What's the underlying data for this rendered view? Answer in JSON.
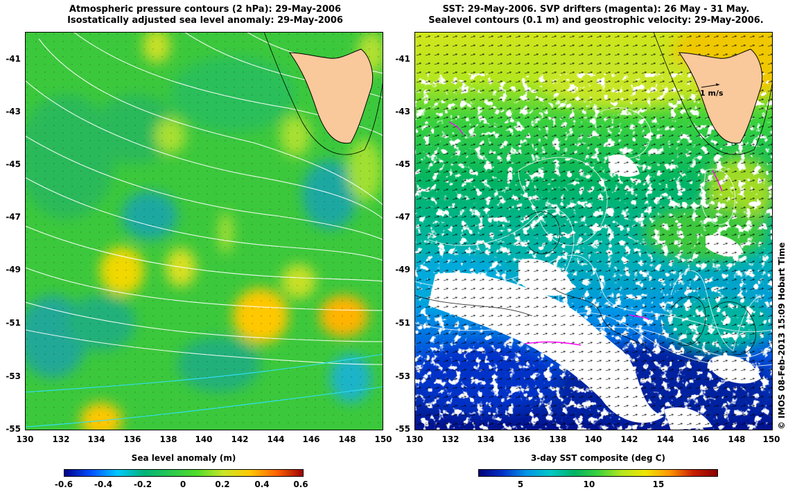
{
  "left_panel": {
    "title_line1": "Atmospheric pressure contours (2 hPa): 29-May-2006",
    "title_line2": "Isostatically adjusted sea level anomaly: 29-May-2006",
    "colorbar_label": "Sea level anomaly (m)",
    "colorbar_ticks": [
      "-0.6",
      "-0.4",
      "-0.2",
      "0",
      "0.2",
      "0.4",
      "0.6"
    ]
  },
  "right_panel": {
    "title_line1": "SST: 29-May-2006. SVP drifters (magenta): 26 May - 31 May.",
    "title_line2": "Sealevel contours (0.1 m) and geostrophic velocity: 29-May-2006.",
    "colorbar_label": "3-day SST composite (deg C)",
    "colorbar_ticks": [
      "5",
      "10",
      "15"
    ],
    "velocity_scale_label": "1 m/s"
  },
  "lat_ticks": [
    "-41",
    "-43",
    "-45",
    "-47",
    "-49",
    "-51",
    "-53",
    "-55"
  ],
  "lon_ticks": [
    "130",
    "132",
    "134",
    "136",
    "138",
    "140",
    "142",
    "144",
    "146",
    "148",
    "150"
  ],
  "credit": "© IMOS 08-Feb-2013 15:09 Hobart Time",
  "colors": {
    "land": "#f9c89b",
    "sla_scale": [
      "#00008b",
      "#0050ff",
      "#00c8ff",
      "#00b478",
      "#28c850",
      "#50dc28",
      "#c8e628",
      "#ffc800",
      "#ff6400",
      "#a00000"
    ],
    "sst_scale": [
      "#00007a",
      "#0032c8",
      "#0096e6",
      "#00c8c8",
      "#00b464",
      "#3cd23c",
      "#b4e61e",
      "#f0e600",
      "#ff9600",
      "#c81e00",
      "#8b0000"
    ]
  }
}
